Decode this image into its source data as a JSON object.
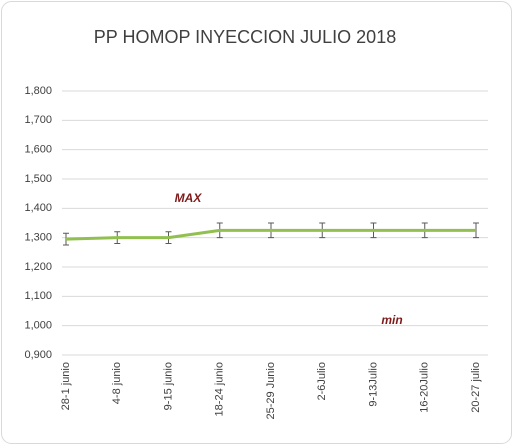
{
  "chart_data": {
    "type": "line",
    "title": "PP HOMOP INYECCION JULIO 2018",
    "categories": [
      "28-1 junio",
      "4-8 junio",
      "9-15 junio",
      "18-24 junio",
      "25-29 Junio",
      "2-6Julio",
      "9-13Julio",
      "16-20Julio",
      "20-27 julio"
    ],
    "series": [
      {
        "name": "PP HOMOP INYECCION",
        "color": "#92c050",
        "values": [
          1295,
          1300,
          1300,
          1325,
          1325,
          1325,
          1325,
          1325,
          1325
        ],
        "errors": [
          20,
          20,
          20,
          25,
          25,
          25,
          25,
          25,
          25
        ]
      }
    ],
    "ylim": [
      900,
      1800
    ],
    "yticks": [
      {
        "value": 900,
        "label": "0,900"
      },
      {
        "value": 1000,
        "label": "1,000"
      },
      {
        "value": 1100,
        "label": "1,100"
      },
      {
        "value": 1200,
        "label": "1,200"
      },
      {
        "value": 1300,
        "label": "1,300"
      },
      {
        "value": 1400,
        "label": "1,400"
      },
      {
        "value": 1500,
        "label": "1,500"
      },
      {
        "value": 1600,
        "label": "1,600"
      },
      {
        "value": 1700,
        "label": "1,700"
      },
      {
        "value": 1800,
        "label": "1,800"
      }
    ],
    "grid": true,
    "annotations": [
      "MAX",
      "min"
    ]
  }
}
